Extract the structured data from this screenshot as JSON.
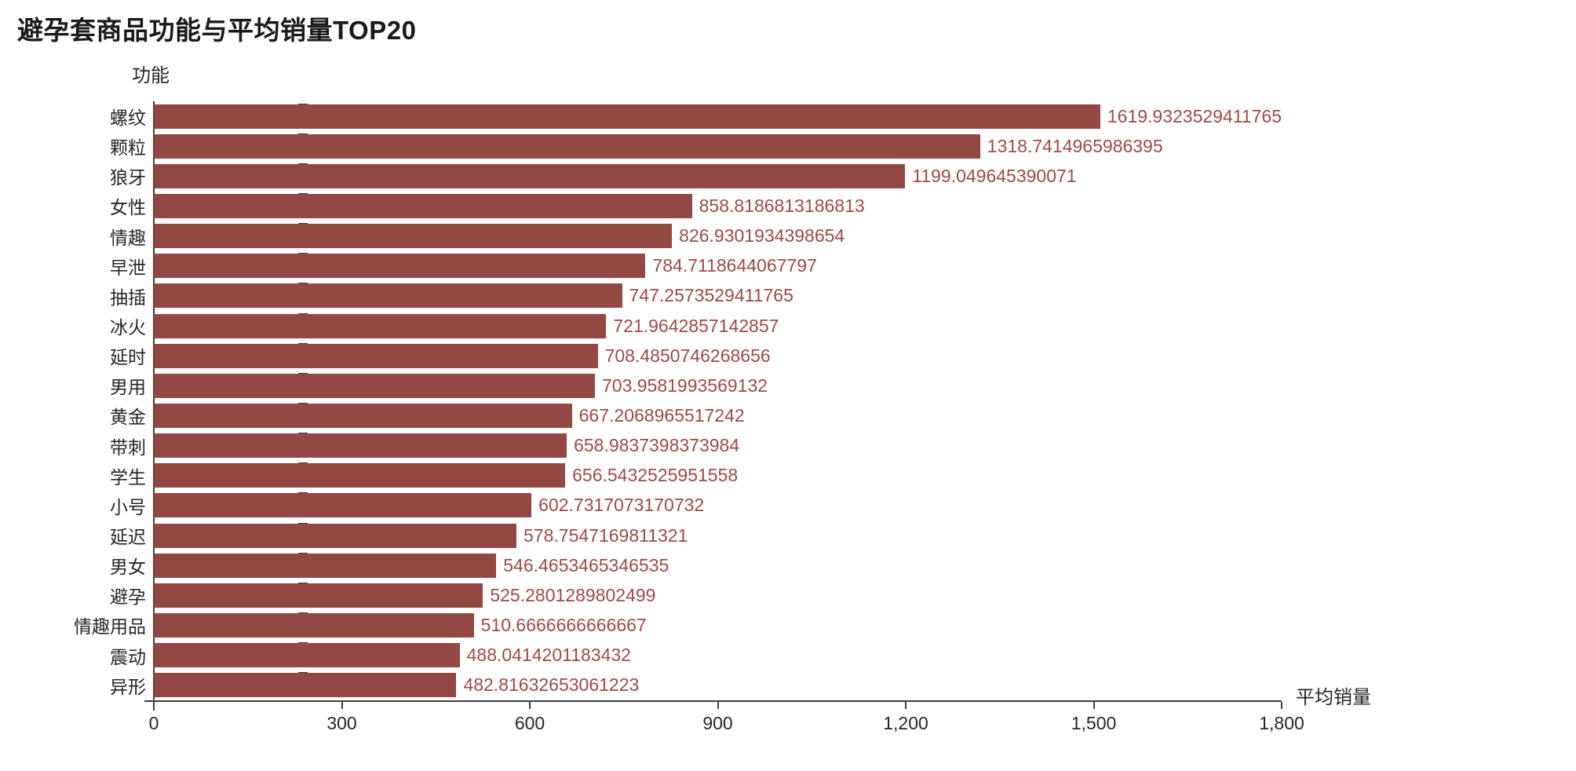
{
  "chart_data": {
    "type": "bar",
    "orientation": "horizontal",
    "title": "避孕套商品功能与平均销量TOP20",
    "ylabel": "功能",
    "xlabel": "平均销量",
    "xlim": [
      0,
      1800
    ],
    "grid": false,
    "legend": false,
    "bar_color": "#944843",
    "value_label_color": "#9c4b45",
    "axis_color": "#3c3c3c",
    "x_ticks": [
      {
        "value": 0,
        "label": "0"
      },
      {
        "value": 300,
        "label": "300"
      },
      {
        "value": 600,
        "label": "600"
      },
      {
        "value": 900,
        "label": "900"
      },
      {
        "value": 1200,
        "label": "1,200"
      },
      {
        "value": 1500,
        "label": "1,500"
      },
      {
        "value": 1800,
        "label": "1,800"
      }
    ],
    "categories": [
      "螺纹",
      "颗粒",
      "狼牙",
      "女性",
      "情趣",
      "早泄",
      "抽插",
      "冰火",
      "延时",
      "男用",
      "黄金",
      "带刺",
      "学生",
      "小号",
      "延迟",
      "男女",
      "避孕",
      "情趣用品",
      "震动",
      "异形"
    ],
    "values": [
      1619.9323529411765,
      1318.7414965986395,
      1199.049645390071,
      858.8186813186813,
      826.9301934398654,
      784.7118644067797,
      747.2573529411765,
      721.9642857142857,
      708.4850746268656,
      703.9581993569132,
      667.2068965517242,
      658.9837398373984,
      656.5432525951558,
      602.7317073170732,
      578.7547169811321,
      546.4653465346535,
      525.2801289802499,
      510.6666666666667,
      488.0414201183432,
      482.81632653061223
    ],
    "value_labels": [
      "1619.9323529411765",
      "1318.7414965986395",
      "1199.049645390071",
      "858.8186813186813",
      "826.9301934398654",
      "784.7118644067797",
      "747.2573529411765",
      "721.9642857142857",
      "708.4850746268656",
      "703.9581993569132",
      "667.2068965517242",
      "658.9837398373984",
      "656.5432525951558",
      "602.7317073170732",
      "578.7547169811321",
      "546.4653465346535",
      "525.2801289802499",
      "510.6666666666667",
      "488.0414201183432",
      "482.81632653061223"
    ]
  }
}
